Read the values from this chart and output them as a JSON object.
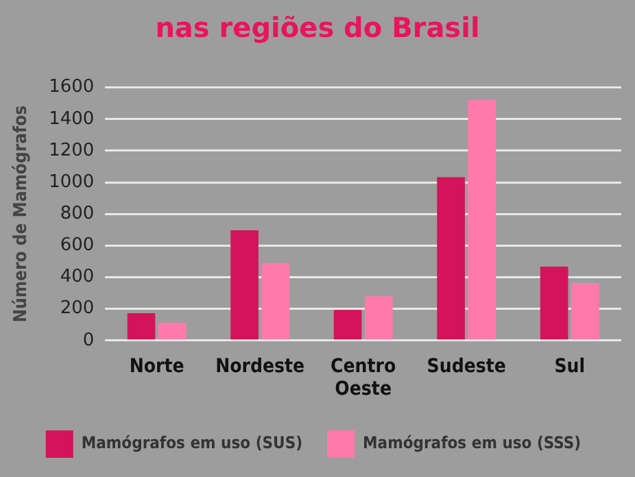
{
  "chart_data": {
    "type": "bar",
    "title": "nas regiões do Brasil",
    "ylabel": "Número de Mamógrafos",
    "categories": [
      "Norte",
      "Nordeste",
      "Centro Oeste",
      "Sudeste",
      "Sul"
    ],
    "series": [
      {
        "name": "Mamógrafos em uso (SUS)",
        "color": "#d3145a",
        "values": [
          173,
          697,
          193,
          1033,
          467
        ]
      },
      {
        "name": "Mamógrafos em uso (SSS)",
        "color": "#ff7aab",
        "values": [
          113,
          490,
          280,
          1520,
          363
        ]
      }
    ],
    "ylim": [
      0,
      1600
    ],
    "yticks": [
      0,
      200,
      400,
      600,
      800,
      1000,
      1200,
      1400,
      1600
    ],
    "grid": "y",
    "legend": "bottom"
  }
}
